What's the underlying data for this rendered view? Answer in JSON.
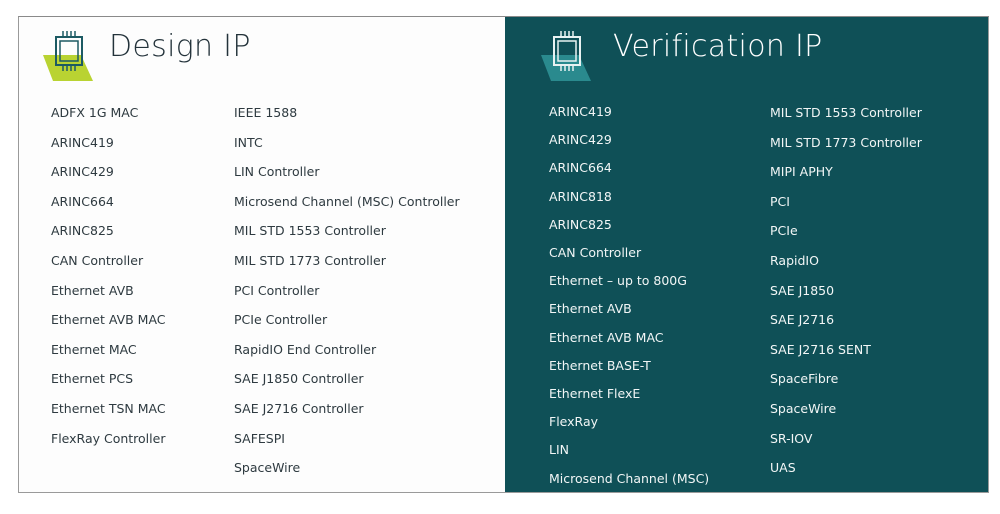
{
  "design_ip": {
    "title": "Design IP",
    "logo_accent": "#b9d332",
    "col1": [
      "ADFX 1G MAC",
      "ARINC419",
      "ARINC429",
      "ARINC664",
      "ARINC825",
      "CAN Controller",
      "Ethernet AVB",
      "Ethernet AVB MAC",
      "Ethernet MAC",
      "Ethernet PCS",
      "Ethernet TSN MAC",
      "FlexRay Controller"
    ],
    "col2": [
      "IEEE 1588",
      "INTC",
      "LIN Controller",
      "Microsend Channel (MSC) Controller",
      "MIL STD 1553 Controller",
      "MIL STD 1773 Controller",
      "PCI Controller",
      "PCIe Controller",
      "RapidIO End Controller",
      "SAE J1850 Controller",
      "SAE J2716 Controller",
      "SAFESPI",
      "SpaceWire"
    ]
  },
  "verification_ip": {
    "title": "Verification IP",
    "background": "#0f5057",
    "logo_accent": "#2a8a8e",
    "col1": [
      "ARINC419",
      "ARINC429",
      "ARINC664",
      "ARINC818",
      "ARINC825",
      "CAN Controller",
      "Ethernet – up to 800G",
      "Ethernet AVB",
      "Ethernet AVB MAC",
      "Ethernet BASE-T",
      "Ethernet FlexE",
      "FlexRay",
      "LIN",
      "Microsend Channel (MSC)"
    ],
    "col2": [
      "MIL STD 1553 Controller",
      "MIL STD 1773 Controller",
      "MIPI APHY",
      "PCI",
      "PCIe",
      "RapidIO",
      "SAE J1850",
      "SAE J2716",
      "SAE J2716 SENT",
      "SpaceFibre",
      "SpaceWire",
      "SR-IOV",
      "UAS"
    ]
  }
}
